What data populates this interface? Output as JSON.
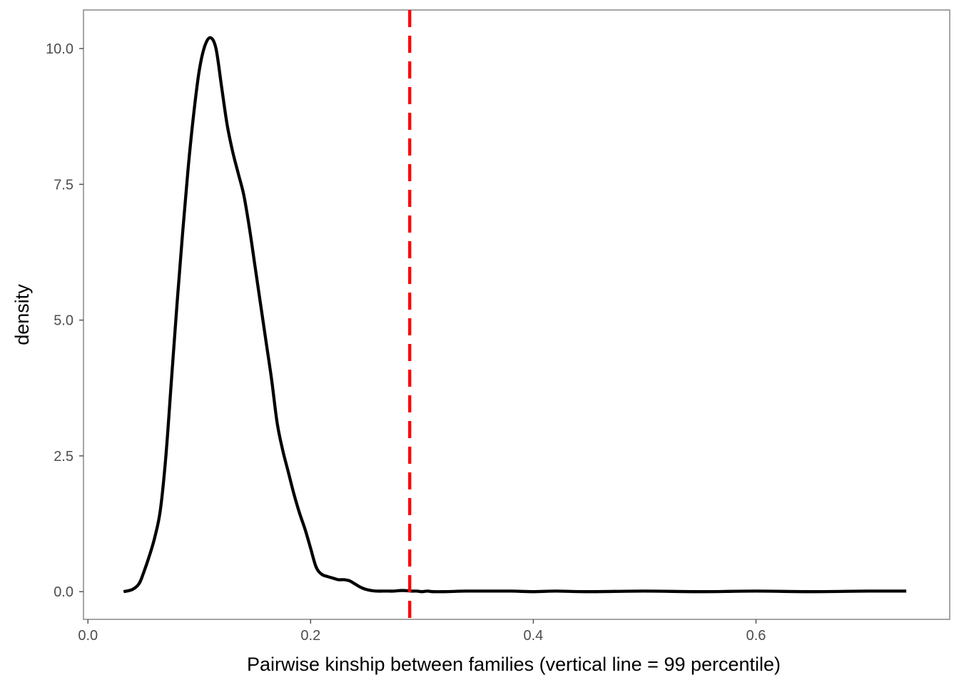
{
  "chart_data": {
    "type": "line",
    "title": "",
    "xlabel": "Pairwise kinship between families (vertical line = 99 percentile)",
    "ylabel": "density",
    "xlim": [
      -0.004,
      0.774
    ],
    "ylim": [
      -0.51,
      10.71
    ],
    "x_ticks": [
      0.0,
      0.2,
      0.4,
      0.6
    ],
    "x_tick_labels": [
      "0.0",
      "0.2",
      "0.4",
      "0.6"
    ],
    "y_ticks": [
      0.0,
      2.5,
      5.0,
      7.5,
      10.0
    ],
    "y_tick_labels": [
      "0.0",
      "2.5",
      "5.0",
      "7.5",
      "10.0"
    ],
    "grid": false,
    "series": [
      {
        "color": "#000000",
        "x": [
          0.032,
          0.04,
          0.046,
          0.05,
          0.055,
          0.06,
          0.065,
          0.07,
          0.075,
          0.08,
          0.085,
          0.09,
          0.095,
          0.1,
          0.105,
          0.11,
          0.115,
          0.12,
          0.125,
          0.13,
          0.135,
          0.14,
          0.145,
          0.15,
          0.155,
          0.16,
          0.165,
          0.17,
          0.175,
          0.18,
          0.185,
          0.19,
          0.195,
          0.2,
          0.205,
          0.21,
          0.215,
          0.22,
          0.225,
          0.23,
          0.235,
          0.24,
          0.245,
          0.25,
          0.255,
          0.26,
          0.265,
          0.27,
          0.275,
          0.28,
          0.285,
          0.29,
          0.295,
          0.3,
          0.305,
          0.31,
          0.32,
          0.34,
          0.36,
          0.38,
          0.4,
          0.42,
          0.45,
          0.5,
          0.55,
          0.6,
          0.65,
          0.7,
          0.735
        ],
        "values": [
          0.0,
          0.04,
          0.15,
          0.35,
          0.65,
          1.0,
          1.5,
          2.5,
          3.9,
          5.3,
          6.6,
          7.8,
          8.8,
          9.6,
          10.05,
          10.2,
          10.0,
          9.3,
          8.6,
          8.1,
          7.7,
          7.3,
          6.7,
          6.0,
          5.3,
          4.6,
          3.9,
          3.1,
          2.6,
          2.2,
          1.8,
          1.45,
          1.15,
          0.8,
          0.45,
          0.32,
          0.28,
          0.25,
          0.22,
          0.22,
          0.2,
          0.14,
          0.08,
          0.04,
          0.02,
          0.01,
          0.01,
          0.01,
          0.01,
          0.02,
          0.02,
          0.01,
          0.01,
          0.0,
          0.01,
          0.0,
          0.0,
          0.01,
          0.01,
          0.01,
          0.0,
          0.01,
          0.0,
          0.01,
          0.0,
          0.01,
          0.0,
          0.01,
          0.01
        ]
      }
    ],
    "vline": {
      "x": 0.289,
      "color": "#ff0000",
      "style": "dashed"
    }
  }
}
